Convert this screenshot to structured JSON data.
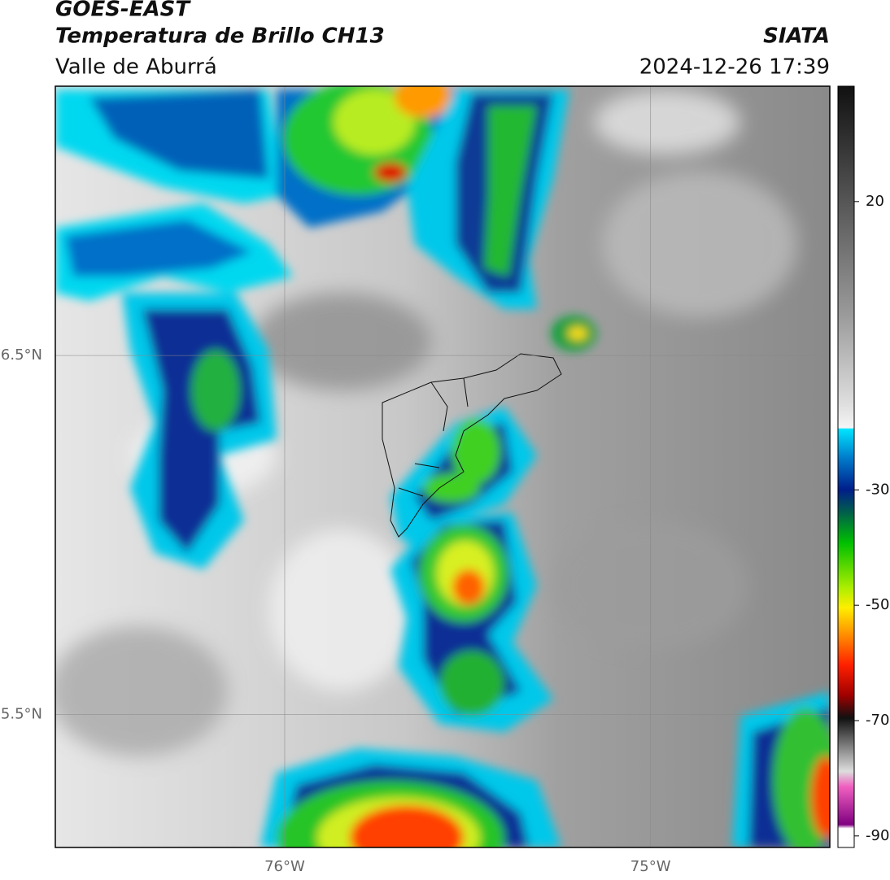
{
  "header": {
    "title": "GOES-EAST",
    "subtitle": "Temperatura de Brillo CH13",
    "region": "Valle de Aburrá",
    "source": "SIATA",
    "datetime": "2024-12-26 17:39"
  },
  "map": {
    "xlim": [
      -76.627,
      -74.51
    ],
    "ylim": [
      5.13,
      7.25
    ],
    "xticks": [
      {
        "value": -76,
        "label": "76°W"
      },
      {
        "value": -75,
        "label": "75°W"
      }
    ],
    "yticks": [
      {
        "value": 6.5,
        "label": "6.5°N"
      },
      {
        "value": 5.5,
        "label": "5.5°N"
      }
    ],
    "grid": true
  },
  "colorbar": {
    "lim": [
      -92,
      40
    ],
    "ticks": [
      20,
      -30,
      -50,
      -70,
      -90
    ]
  }
}
